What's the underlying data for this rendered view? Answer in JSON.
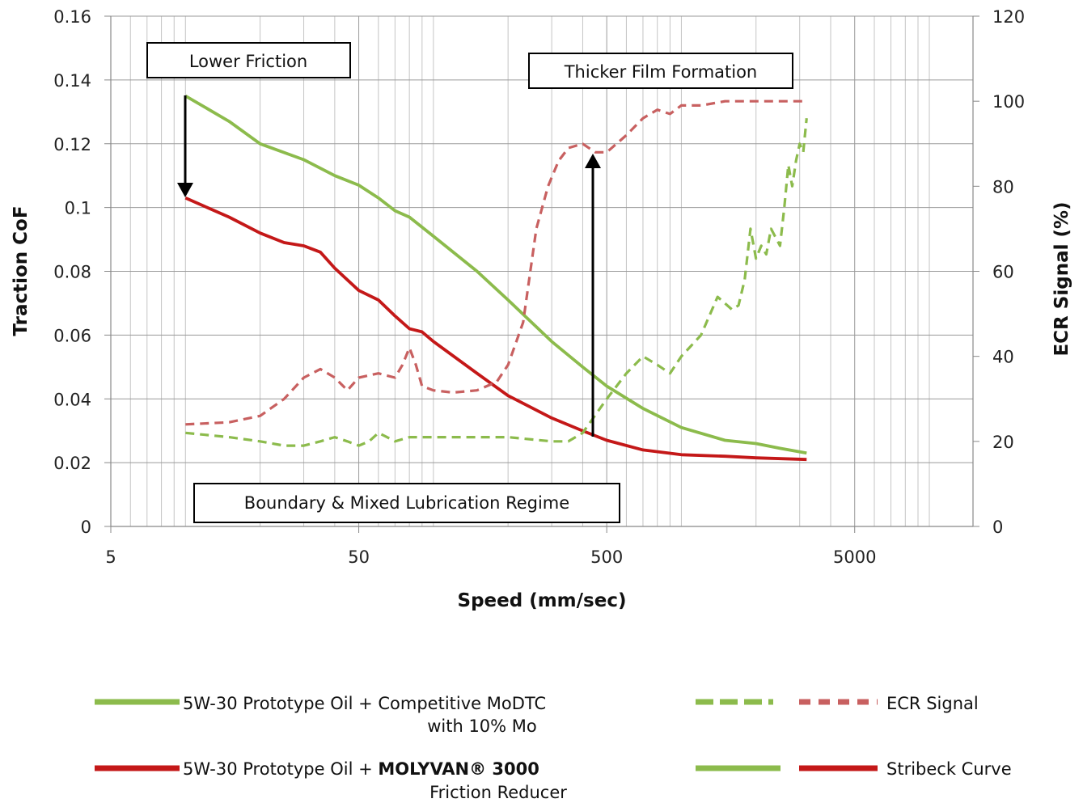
{
  "chart_data": {
    "type": "line",
    "xlabel": "Speed (mm/sec)",
    "ylabel_left": "Traction CoF",
    "ylabel_right": "ECR Signal (%)",
    "x_scale": "log",
    "xlim": [
      5,
      15000
    ],
    "ylim_left": [
      0,
      0.16
    ],
    "ylim_right": [
      0,
      120
    ],
    "x_ticks": [
      "5",
      "50",
      "500",
      "5000"
    ],
    "y_ticks_left": [
      "0",
      "0.02",
      "0.04",
      "0.06",
      "0.08",
      "0.1",
      "0.12",
      "0.14",
      "0.16"
    ],
    "y_ticks_right": [
      "0",
      "20",
      "40",
      "60",
      "80",
      "100",
      "120"
    ],
    "grid": true,
    "series": [
      {
        "name": "5W-30 Prototype Oil + Competitive MoDTC with 10% Mo",
        "kind": "Stribeck Curve",
        "axis": "left",
        "style": "solid",
        "color": "#8cbb4c",
        "points": [
          [
            10,
            0.135
          ],
          [
            15,
            0.127
          ],
          [
            20,
            0.12
          ],
          [
            30,
            0.115
          ],
          [
            40,
            0.11
          ],
          [
            50,
            0.107
          ],
          [
            60,
            0.103
          ],
          [
            70,
            0.099
          ],
          [
            80,
            0.097
          ],
          [
            100,
            0.091
          ],
          [
            150,
            0.08
          ],
          [
            200,
            0.071
          ],
          [
            300,
            0.058
          ],
          [
            400,
            0.05
          ],
          [
            500,
            0.044
          ],
          [
            700,
            0.037
          ],
          [
            1000,
            0.031
          ],
          [
            1500,
            0.027
          ],
          [
            2000,
            0.026
          ],
          [
            2500,
            0.0245
          ],
          [
            3200,
            0.023
          ]
        ]
      },
      {
        "name": "5W-30 Prototype Oil + MOLYVAN® 3000 Friction Reducer",
        "kind": "Stribeck Curve",
        "axis": "left",
        "style": "solid",
        "color": "#c41818",
        "points": [
          [
            10,
            0.103
          ],
          [
            15,
            0.097
          ],
          [
            20,
            0.092
          ],
          [
            25,
            0.089
          ],
          [
            30,
            0.088
          ],
          [
            35,
            0.086
          ],
          [
            40,
            0.081
          ],
          [
            50,
            0.074
          ],
          [
            60,
            0.071
          ],
          [
            70,
            0.066
          ],
          [
            80,
            0.062
          ],
          [
            90,
            0.061
          ],
          [
            100,
            0.058
          ],
          [
            150,
            0.048
          ],
          [
            200,
            0.041
          ],
          [
            300,
            0.034
          ],
          [
            400,
            0.03
          ],
          [
            500,
            0.027
          ],
          [
            700,
            0.024
          ],
          [
            1000,
            0.0225
          ],
          [
            1500,
            0.022
          ],
          [
            2000,
            0.0215
          ],
          [
            3200,
            0.021
          ]
        ]
      },
      {
        "name": "5W-30 Prototype Oil + Competitive MoDTC with 10% Mo",
        "kind": "ECR Signal",
        "axis": "right",
        "style": "dashed",
        "color": "#8cbb4c",
        "points": [
          [
            10,
            22
          ],
          [
            15,
            21
          ],
          [
            20,
            20
          ],
          [
            25,
            19
          ],
          [
            30,
            19
          ],
          [
            35,
            20
          ],
          [
            40,
            21
          ],
          [
            45,
            20
          ],
          [
            50,
            19
          ],
          [
            55,
            20
          ],
          [
            60,
            22
          ],
          [
            65,
            21
          ],
          [
            70,
            20
          ],
          [
            80,
            21
          ],
          [
            100,
            21
          ],
          [
            150,
            21
          ],
          [
            200,
            21
          ],
          [
            300,
            20
          ],
          [
            350,
            20
          ],
          [
            400,
            22
          ],
          [
            500,
            30
          ],
          [
            600,
            36
          ],
          [
            700,
            40
          ],
          [
            800,
            38
          ],
          [
            900,
            36
          ],
          [
            1000,
            40
          ],
          [
            1200,
            45
          ],
          [
            1400,
            54
          ],
          [
            1600,
            51
          ],
          [
            1700,
            52
          ],
          [
            1800,
            58
          ],
          [
            1900,
            70
          ],
          [
            2000,
            63
          ],
          [
            2100,
            66
          ],
          [
            2200,
            64
          ],
          [
            2300,
            70
          ],
          [
            2500,
            66
          ],
          [
            2600,
            75
          ],
          [
            2700,
            85
          ],
          [
            2800,
            80
          ],
          [
            2900,
            86
          ],
          [
            3000,
            90
          ],
          [
            3100,
            88
          ],
          [
            3200,
            96
          ]
        ]
      },
      {
        "name": "5W-30 Prototype Oil + MOLYVAN® 3000 Friction Reducer",
        "kind": "ECR Signal",
        "axis": "right",
        "style": "dashed",
        "color": "#c86060",
        "points": [
          [
            10,
            24
          ],
          [
            15,
            24.5
          ],
          [
            20,
            26
          ],
          [
            25,
            30
          ],
          [
            30,
            35
          ],
          [
            35,
            37
          ],
          [
            40,
            35
          ],
          [
            45,
            32
          ],
          [
            50,
            35
          ],
          [
            60,
            36
          ],
          [
            70,
            35
          ],
          [
            75,
            38
          ],
          [
            80,
            42
          ],
          [
            85,
            38
          ],
          [
            90,
            33
          ],
          [
            100,
            32
          ],
          [
            120,
            31.5
          ],
          [
            150,
            32
          ],
          [
            180,
            34
          ],
          [
            200,
            38
          ],
          [
            230,
            48
          ],
          [
            260,
            70
          ],
          [
            290,
            80
          ],
          [
            320,
            86
          ],
          [
            350,
            89
          ],
          [
            400,
            90
          ],
          [
            450,
            88
          ],
          [
            500,
            88
          ],
          [
            600,
            92
          ],
          [
            700,
            96
          ],
          [
            800,
            98
          ],
          [
            900,
            97
          ],
          [
            1000,
            99
          ],
          [
            1200,
            99
          ],
          [
            1500,
            100
          ],
          [
            2000,
            100
          ],
          [
            3200,
            100
          ]
        ]
      }
    ],
    "annotations": [
      {
        "text": "Lower Friction"
      },
      {
        "text": "Thicker Film Formation"
      },
      {
        "text": "Boundary & Mixed Lubrication Regime"
      }
    ],
    "legend": {
      "placement": "bottom",
      "entries": [
        {
          "line1": "5W-30 Prototype Oil + Competitive MoDTC",
          "line2": "with 10% Mo"
        },
        {
          "line1_prefix": "5W-30 Prototype Oil + ",
          "line1_bold": "MOLYVAN® 3000",
          "line2": "Friction Reducer"
        },
        {
          "label": "ECR Signal"
        },
        {
          "label": "Stribeck Curve"
        }
      ]
    }
  }
}
